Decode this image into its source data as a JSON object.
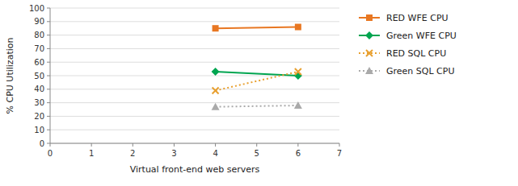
{
  "chart_data": {
    "type": "line",
    "xlabel": "Virtual front-end web servers",
    "ylabel": "% CPU Utilization",
    "x": [
      4,
      6
    ],
    "xlim": [
      0,
      7
    ],
    "ylim": [
      0,
      100
    ],
    "xticks": [
      0,
      1,
      2,
      3,
      4,
      5,
      6,
      7
    ],
    "yticks": [
      0,
      10,
      20,
      30,
      40,
      50,
      60,
      70,
      80,
      90,
      100
    ],
    "grid": true,
    "legend": "right",
    "series": [
      {
        "name": "RED WFE CPU",
        "color": "#E87722",
        "values": [
          85,
          86
        ],
        "marker": "square",
        "line_style": "solid"
      },
      {
        "name": "Green WFE CPU",
        "color": "#00A550",
        "values": [
          53,
          50
        ],
        "marker": "diamond",
        "line_style": "solid"
      },
      {
        "name": "RED SQL CPU",
        "color": "#E8A030",
        "values": [
          39,
          53
        ],
        "marker": "x",
        "line_style": "dotted"
      },
      {
        "name": "Green SQL CPU",
        "color": "#aaaaaa",
        "values": [
          27,
          28
        ],
        "marker": "triangle",
        "line_style": "dotted"
      }
    ]
  }
}
